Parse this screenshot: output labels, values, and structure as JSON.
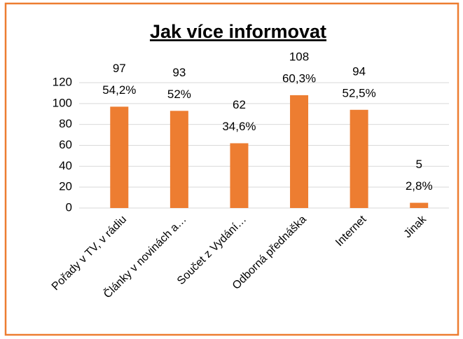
{
  "chart_data": {
    "type": "bar",
    "title": "Jak více informovat",
    "categories": [
      "Pořady v TV, v rádiu",
      "Články v novinách a…",
      "Součet z Vydání…",
      "Odborná přednáška",
      "Internet",
      "Jinak"
    ],
    "values": [
      97,
      93,
      62,
      108,
      94,
      5
    ],
    "percentages": [
      54.2,
      52,
      34.6,
      60.3,
      52.5,
      2.8
    ],
    "percentage_labels": [
      "54,2%",
      "52%",
      "34,6%",
      "60,3%",
      "52,5%",
      "2,8%"
    ],
    "color": "#ed7d31",
    "ylim": [
      0,
      120
    ],
    "yticks": [
      0,
      20,
      40,
      60,
      80,
      100,
      120
    ],
    "grid": true
  }
}
